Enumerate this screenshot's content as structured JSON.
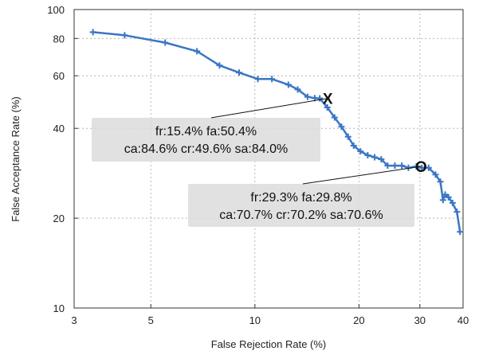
{
  "chart_data": {
    "type": "line",
    "xlabel": "False Rejection Rate (%)",
    "ylabel": "False Acceptance Rate (%)",
    "xscale": "log",
    "yscale": "log",
    "xlim": [
      3,
      40
    ],
    "ylim": [
      10,
      100
    ],
    "xticks": [
      3,
      5,
      10,
      20,
      30,
      40
    ],
    "yticks": [
      10,
      20,
      40,
      60,
      80,
      100
    ],
    "grid": true,
    "line_color": "#3a76c4",
    "series": [
      {
        "x": [
          3.4,
          4.2,
          5.5,
          6.8,
          7.9,
          9.0,
          10.2,
          11.2,
          12.5,
          13.3,
          14.2,
          14.9,
          15.4,
          16.2,
          17.0,
          17.8,
          18.6,
          19.3,
          20.2,
          21.2,
          22.2,
          23.2,
          24.2,
          25.4,
          26.6,
          27.8,
          29.3,
          30.4,
          31.8,
          33.3,
          34.4,
          35.0,
          35.5,
          36.3,
          37.3,
          38.4,
          39.2
        ],
        "y": [
          84,
          82,
          77.5,
          72.5,
          65,
          61.5,
          58.5,
          58.5,
          56,
          54,
          51,
          50.5,
          50.4,
          47,
          43.5,
          40.5,
          37.5,
          35,
          33.5,
          32.5,
          32,
          31.5,
          30,
          30,
          30,
          29.5,
          29.8,
          29.5,
          29.5,
          28,
          26.5,
          23,
          24,
          23.5,
          22.5,
          21,
          18
        ]
      }
    ],
    "annotations": [
      {
        "marker": "X",
        "point": [
          15.4,
          50.4
        ],
        "label_line1": "fr:15.4% fa:50.4%",
        "label_line2": "ca:84.6% cr:49.6% sa:84.0%"
      },
      {
        "marker": "O",
        "point": [
          29.3,
          29.8
        ],
        "label_line1": "fr:29.3% fa:29.8%",
        "label_line2": "ca:70.7% cr:70.2% sa:70.6%"
      }
    ]
  }
}
